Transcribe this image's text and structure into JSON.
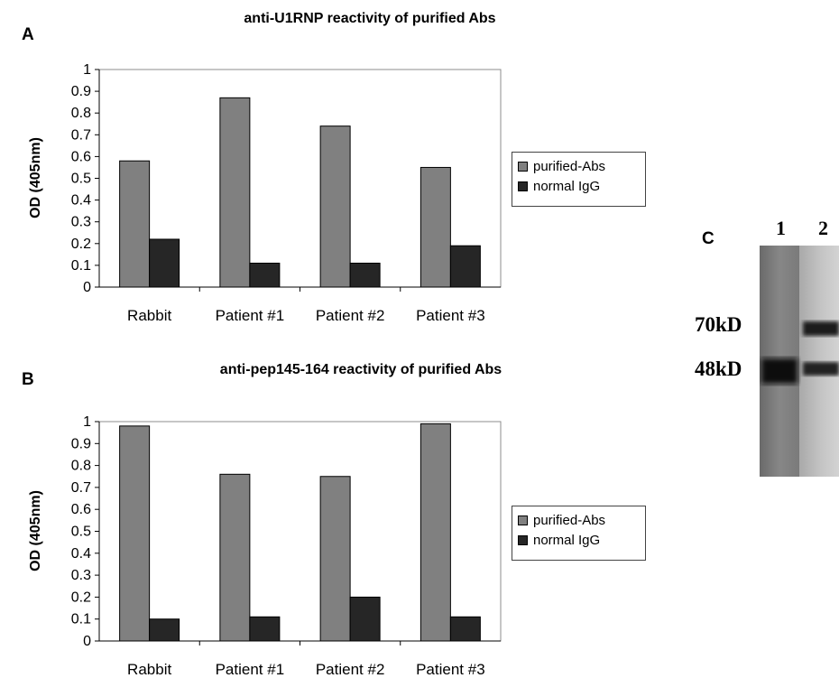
{
  "panels": {
    "a": {
      "letter": "A",
      "title": "anti-U1RNP reactivity of purified  Abs"
    },
    "b": {
      "letter": "B",
      "title": "anti-pep145-164 reactivity of purified Abs"
    },
    "c": {
      "letter": "C",
      "lanes": [
        "1",
        "2"
      ],
      "markers": [
        "70kD",
        "48kD"
      ]
    }
  },
  "colors": {
    "purified": "#808080",
    "normal": "#262626"
  },
  "chart_data": [
    {
      "type": "bar",
      "title": "anti-U1RNP reactivity of purified  Abs",
      "xlabel": "",
      "ylabel": "OD (405nm)",
      "ylim": [
        0,
        1
      ],
      "yticks": [
        "0",
        "0.1",
        "0.2",
        "0.3",
        "0.4",
        "0.5",
        "0.6",
        "0.7",
        "0.8",
        "0.9",
        "1"
      ],
      "categories": [
        "Rabbit",
        "Patient #1",
        "Patient #2",
        "Patient #3"
      ],
      "series": [
        {
          "name": "purified-Abs",
          "values": [
            0.58,
            0.87,
            0.74,
            0.55
          ]
        },
        {
          "name": "normal IgG",
          "values": [
            0.22,
            0.11,
            0.11,
            0.19
          ]
        }
      ],
      "legend": "right",
      "grid": false
    },
    {
      "type": "bar",
      "title": "anti-pep145-164 reactivity of purified Abs",
      "xlabel": "",
      "ylabel": "OD (405nm)",
      "ylim": [
        0,
        1
      ],
      "yticks": [
        "0",
        "0.1",
        "0.2",
        "0.3",
        "0.4",
        "0.5",
        "0.6",
        "0.7",
        "0.8",
        "0.9",
        "1"
      ],
      "categories": [
        "Rabbit",
        "Patient #1",
        "Patient #2",
        "Patient #3"
      ],
      "series": [
        {
          "name": "purified-Abs",
          "values": [
            0.98,
            0.76,
            0.75,
            0.99
          ]
        },
        {
          "name": "normal IgG",
          "values": [
            0.1,
            0.11,
            0.2,
            0.11
          ]
        }
      ],
      "legend": "right",
      "grid": false
    }
  ]
}
